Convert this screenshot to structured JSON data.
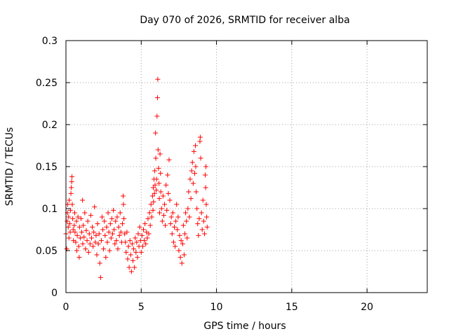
{
  "chart_data": {
    "type": "scatter",
    "title": "Day 070 of 2026, SRMTID for receiver alba",
    "xlabel": "GPS time / hours",
    "ylabel": "SRMTID / TECUs",
    "xlim": [
      0,
      24
    ],
    "ylim": [
      0,
      0.3
    ],
    "xticks": [
      0,
      5,
      10,
      15,
      20
    ],
    "yticks": [
      0,
      0.05,
      0.1,
      0.15,
      0.2,
      0.25,
      0.3
    ],
    "xtick_labels": [
      "0",
      "5",
      "10",
      "15",
      "20"
    ],
    "ytick_labels": [
      "0",
      "0.05",
      "0.1",
      "0.15",
      "0.2",
      "0.25",
      "0.3"
    ],
    "grid": true,
    "marker": "+",
    "series": [
      {
        "name": "SRMTID",
        "color": "#ff0000",
        "points": [
          [
            0.0,
            0.07
          ],
          [
            0.05,
            0.052
          ],
          [
            0.08,
            0.085
          ],
          [
            0.1,
            0.095
          ],
          [
            0.12,
            0.105
          ],
          [
            0.15,
            0.078
          ],
          [
            0.18,
            0.09
          ],
          [
            0.2,
            0.065
          ],
          [
            0.22,
            0.11
          ],
          [
            0.25,
            0.082
          ],
          [
            0.28,
            0.072
          ],
          [
            0.3,
            0.098
          ],
          [
            0.33,
            0.118
          ],
          [
            0.35,
            0.125
          ],
          [
            0.38,
            0.132
          ],
          [
            0.4,
            0.138
          ],
          [
            0.42,
            0.105
          ],
          [
            0.45,
            0.088
          ],
          [
            0.48,
            0.075
          ],
          [
            0.5,
            0.062
          ],
          [
            0.55,
            0.08
          ],
          [
            0.58,
            0.095
          ],
          [
            0.6,
            0.072
          ],
          [
            0.65,
            0.06
          ],
          [
            0.7,
            0.085
          ],
          [
            0.72,
            0.05
          ],
          [
            0.75,
            0.068
          ],
          [
            0.8,
            0.09
          ],
          [
            0.85,
            0.055
          ],
          [
            0.88,
            0.042
          ],
          [
            0.9,
            0.078
          ],
          [
            0.95,
            0.065
          ],
          [
            1.0,
            0.088
          ],
          [
            1.05,
            0.072
          ],
          [
            1.1,
            0.11
          ],
          [
            1.12,
            0.058
          ],
          [
            1.15,
            0.08
          ],
          [
            1.2,
            0.066
          ],
          [
            1.25,
            0.095
          ],
          [
            1.3,
            0.052
          ],
          [
            1.35,
            0.074
          ],
          [
            1.4,
            0.062
          ],
          [
            1.45,
            0.085
          ],
          [
            1.5,
            0.048
          ],
          [
            1.55,
            0.07
          ],
          [
            1.6,
            0.058
          ],
          [
            1.65,
            0.092
          ],
          [
            1.7,
            0.065
          ],
          [
            1.75,
            0.078
          ],
          [
            1.8,
            0.055
          ],
          [
            1.85,
            0.072
          ],
          [
            1.9,
            0.102
          ],
          [
            1.95,
            0.06
          ],
          [
            2.0,
            0.068
          ],
          [
            2.05,
            0.045
          ],
          [
            2.1,
            0.082
          ],
          [
            2.15,
            0.058
          ],
          [
            2.2,
            0.07
          ],
          [
            2.25,
            0.035
          ],
          [
            2.3,
            0.018
          ],
          [
            2.35,
            0.062
          ],
          [
            2.4,
            0.09
          ],
          [
            2.45,
            0.075
          ],
          [
            2.5,
            0.052
          ],
          [
            2.55,
            0.085
          ],
          [
            2.6,
            0.068
          ],
          [
            2.65,
            0.042
          ],
          [
            2.7,
            0.078
          ],
          [
            2.75,
            0.06
          ],
          [
            2.8,
            0.095
          ],
          [
            2.85,
            0.072
          ],
          [
            2.9,
            0.05
          ],
          [
            2.95,
            0.082
          ],
          [
            3.0,
            0.065
          ],
          [
            3.05,
            0.088
          ],
          [
            3.1,
            0.07
          ],
          [
            3.15,
            0.098
          ],
          [
            3.2,
            0.075
          ],
          [
            3.25,
            0.058
          ],
          [
            3.3,
            0.085
          ],
          [
            3.35,
            0.062
          ],
          [
            3.4,
            0.09
          ],
          [
            3.45,
            0.052
          ],
          [
            3.5,
            0.078
          ],
          [
            3.55,
            0.068
          ],
          [
            3.6,
            0.095
          ],
          [
            3.65,
            0.072
          ],
          [
            3.7,
            0.06
          ],
          [
            3.75,
            0.082
          ],
          [
            3.8,
            0.115
          ],
          [
            3.82,
            0.105
          ],
          [
            3.85,
            0.088
          ],
          [
            3.9,
            0.07
          ],
          [
            3.95,
            0.06
          ],
          [
            4.0,
            0.048
          ],
          [
            4.05,
            0.072
          ],
          [
            4.1,
            0.04
          ],
          [
            4.15,
            0.055
          ],
          [
            4.2,
            0.03
          ],
          [
            4.25,
            0.062
          ],
          [
            4.3,
            0.045
          ],
          [
            4.35,
            0.025
          ],
          [
            4.4,
            0.058
          ],
          [
            4.45,
            0.038
          ],
          [
            4.5,
            0.052
          ],
          [
            4.55,
            0.03
          ],
          [
            4.6,
            0.065
          ],
          [
            4.65,
            0.048
          ],
          [
            4.7,
            0.06
          ],
          [
            4.75,
            0.042
          ],
          [
            4.8,
            0.07
          ],
          [
            4.85,
            0.055
          ],
          [
            4.9,
            0.078
          ],
          [
            4.95,
            0.062
          ],
          [
            5.0,
            0.048
          ],
          [
            5.05,
            0.068
          ],
          [
            5.1,
            0.055
          ],
          [
            5.15,
            0.075
          ],
          [
            5.2,
            0.062
          ],
          [
            5.25,
            0.082
          ],
          [
            5.3,
            0.058
          ],
          [
            5.35,
            0.072
          ],
          [
            5.4,
            0.065
          ],
          [
            5.45,
            0.088
          ],
          [
            5.5,
            0.07
          ],
          [
            5.55,
            0.095
          ],
          [
            5.6,
            0.08
          ],
          [
            5.65,
            0.105
          ],
          [
            5.7,
            0.09
          ],
          [
            5.75,
            0.115
          ],
          [
            5.78,
            0.098
          ],
          [
            5.8,
            0.125
          ],
          [
            5.82,
            0.108
          ],
          [
            5.85,
            0.135
          ],
          [
            5.88,
            0.118
          ],
          [
            5.9,
            0.145
          ],
          [
            5.92,
            0.128
          ],
          [
            5.95,
            0.19
          ],
          [
            5.97,
            0.16
          ],
          [
            6.0,
            0.122
          ],
          [
            6.02,
            0.135
          ],
          [
            6.05,
            0.21
          ],
          [
            6.08,
            0.232
          ],
          [
            6.1,
            0.254
          ],
          [
            6.12,
            0.17
          ],
          [
            6.15,
            0.148
          ],
          [
            6.18,
            0.13
          ],
          [
            6.2,
            0.112
          ],
          [
            6.22,
            0.095
          ],
          [
            6.25,
            0.165
          ],
          [
            6.28,
            0.142
          ],
          [
            6.3,
            0.12
          ],
          [
            6.35,
            0.1
          ],
          [
            6.4,
            0.085
          ],
          [
            6.45,
            0.115
          ],
          [
            6.5,
            0.092
          ],
          [
            6.55,
            0.105
          ],
          [
            6.6,
            0.08
          ],
          [
            6.65,
            0.128
          ],
          [
            6.7,
            0.098
          ],
          [
            6.75,
            0.14
          ],
          [
            6.8,
            0.118
          ],
          [
            6.85,
            0.158
          ],
          [
            6.9,
            0.11
          ],
          [
            6.95,
            0.082
          ],
          [
            7.0,
            0.09
          ],
          [
            7.05,
            0.07
          ],
          [
            7.1,
            0.095
          ],
          [
            7.15,
            0.06
          ],
          [
            7.2,
            0.078
          ],
          [
            7.25,
            0.055
          ],
          [
            7.3,
            0.085
          ],
          [
            7.35,
            0.105
          ],
          [
            7.4,
            0.075
          ],
          [
            7.45,
            0.09
          ],
          [
            7.5,
            0.05
          ],
          [
            7.55,
            0.068
          ],
          [
            7.6,
            0.042
          ],
          [
            7.65,
            0.062
          ],
          [
            7.7,
            0.035
          ],
          [
            7.75,
            0.058
          ],
          [
            7.8,
            0.08
          ],
          [
            7.85,
            0.045
          ],
          [
            7.9,
            0.07
          ],
          [
            7.95,
            0.095
          ],
          [
            8.0,
            0.085
          ],
          [
            8.05,
            0.065
          ],
          [
            8.1,
            0.1
          ],
          [
            8.15,
            0.12
          ],
          [
            8.2,
            0.09
          ],
          [
            8.25,
            0.135
          ],
          [
            8.3,
            0.112
          ],
          [
            8.35,
            0.145
          ],
          [
            8.4,
            0.155
          ],
          [
            8.45,
            0.13
          ],
          [
            8.5,
            0.168
          ],
          [
            8.55,
            0.142
          ],
          [
            8.6,
            0.175
          ],
          [
            8.62,
            0.15
          ],
          [
            8.65,
            0.12
          ],
          [
            8.7,
            0.1
          ],
          [
            8.75,
            0.082
          ],
          [
            8.8,
            0.068
          ],
          [
            8.85,
            0.088
          ],
          [
            8.9,
            0.18
          ],
          [
            8.92,
            0.185
          ],
          [
            8.95,
            0.16
          ],
          [
            9.0,
            0.095
          ],
          [
            9.05,
            0.075
          ],
          [
            9.1,
            0.11
          ],
          [
            9.15,
            0.085
          ],
          [
            9.2,
            0.07
          ],
          [
            9.25,
            0.14
          ],
          [
            9.28,
            0.125
          ],
          [
            9.3,
            0.15
          ],
          [
            9.32,
            0.105
          ],
          [
            9.35,
            0.09
          ],
          [
            9.38,
            0.078
          ]
        ]
      }
    ]
  }
}
